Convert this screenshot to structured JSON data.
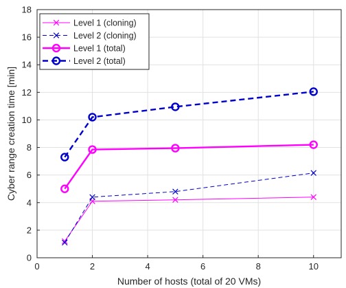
{
  "chart_data": {
    "type": "line",
    "xlabel": "Number of hosts (total of 20 VMs)",
    "ylabel": "Cyber range creation time [min]",
    "xlim": [
      0,
      11
    ],
    "ylim": [
      0,
      18
    ],
    "xticks": [
      0,
      2,
      4,
      6,
      8,
      10
    ],
    "yticks": [
      0,
      2,
      4,
      6,
      8,
      10,
      12,
      14,
      16,
      18
    ],
    "grid": true,
    "legend_position": "top-left",
    "series": [
      {
        "name": "Level 1 (cloning)",
        "x": [
          1,
          2,
          5,
          10
        ],
        "y": [
          1.2,
          4.1,
          4.2,
          4.4
        ],
        "color": "#ff00ff",
        "marker": "x",
        "dash": "solid",
        "width": "thin"
      },
      {
        "name": "Level 2 (cloning)",
        "x": [
          1,
          2,
          5,
          10
        ],
        "y": [
          1.1,
          4.4,
          4.8,
          6.15
        ],
        "color": "#0000cc",
        "marker": "x",
        "dash": "dashed",
        "width": "thin"
      },
      {
        "name": "Level 1 (total)",
        "x": [
          1,
          2,
          5,
          10
        ],
        "y": [
          5.0,
          7.85,
          7.95,
          8.2
        ],
        "color": "#ff00ff",
        "marker": "circle",
        "dash": "solid",
        "width": "thick"
      },
      {
        "name": "Level 2 (total)",
        "x": [
          1,
          2,
          5,
          10
        ],
        "y": [
          7.3,
          10.2,
          10.95,
          12.05
        ],
        "color": "#0000cc",
        "marker": "circle",
        "dash": "dashed",
        "width": "thick"
      }
    ]
  }
}
